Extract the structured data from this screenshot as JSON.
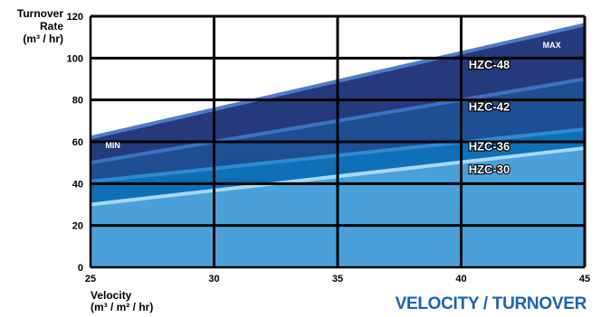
{
  "chart_data": {
    "type": "area",
    "footer_title": "VELOCITY / TURNOVER",
    "y_axis": {
      "title_line1": "Turnover",
      "title_line2": "Rate",
      "unit": "(m³ / hr)",
      "range": [
        0,
        120
      ],
      "ticks": [
        0,
        20,
        40,
        60,
        80,
        100,
        120
      ]
    },
    "x_axis": {
      "title_line1": "Velocity",
      "unit": "(m³ / m² / hr)",
      "range": [
        25,
        45
      ],
      "ticks": [
        25,
        30,
        35,
        40,
        45
      ]
    },
    "grid": true,
    "bands": [
      {
        "name": "HZC-30",
        "top": [
          [
            25,
            30
          ],
          [
            45,
            57
          ]
        ],
        "color": "#4aa1d9"
      },
      {
        "name": "HZC-36",
        "top": [
          [
            25,
            41
          ],
          [
            45,
            66
          ]
        ],
        "color": "#0f6fb7"
      },
      {
        "name": "HZC-42",
        "top": [
          [
            25,
            50
          ],
          [
            45,
            90
          ]
        ],
        "color": "#1e4f93"
      },
      {
        "name": "HZC-48",
        "top": [
          [
            25,
            62
          ],
          [
            45,
            116
          ]
        ],
        "color": "#243a7d"
      }
    ],
    "edges": [
      {
        "top": [
          [
            25,
            30
          ],
          [
            45,
            57
          ]
        ],
        "color": "#a7d8f5"
      },
      {
        "top": [
          [
            25,
            41
          ],
          [
            45,
            66
          ]
        ],
        "color": "#2f8ad0"
      },
      {
        "top": [
          [
            25,
            50
          ],
          [
            45,
            90
          ]
        ],
        "color": "#3d72c0"
      },
      {
        "top": [
          [
            25,
            62
          ],
          [
            45,
            116
          ]
        ],
        "color": "#4f7cc8"
      }
    ],
    "band_labels": [
      {
        "text": "HZC-48",
        "x": 40.3,
        "y": 95
      },
      {
        "text": "HZC-42",
        "x": 40.3,
        "y": 75
      },
      {
        "text": "HZC-36",
        "x": 40.3,
        "y": 56
      },
      {
        "text": "HZC-30",
        "x": 40.3,
        "y": 45
      }
    ],
    "annotations": [
      {
        "text": "MIN",
        "x": 25.6,
        "y": 57
      },
      {
        "text": "MAX",
        "x": 43.3,
        "y": 105
      }
    ]
  }
}
